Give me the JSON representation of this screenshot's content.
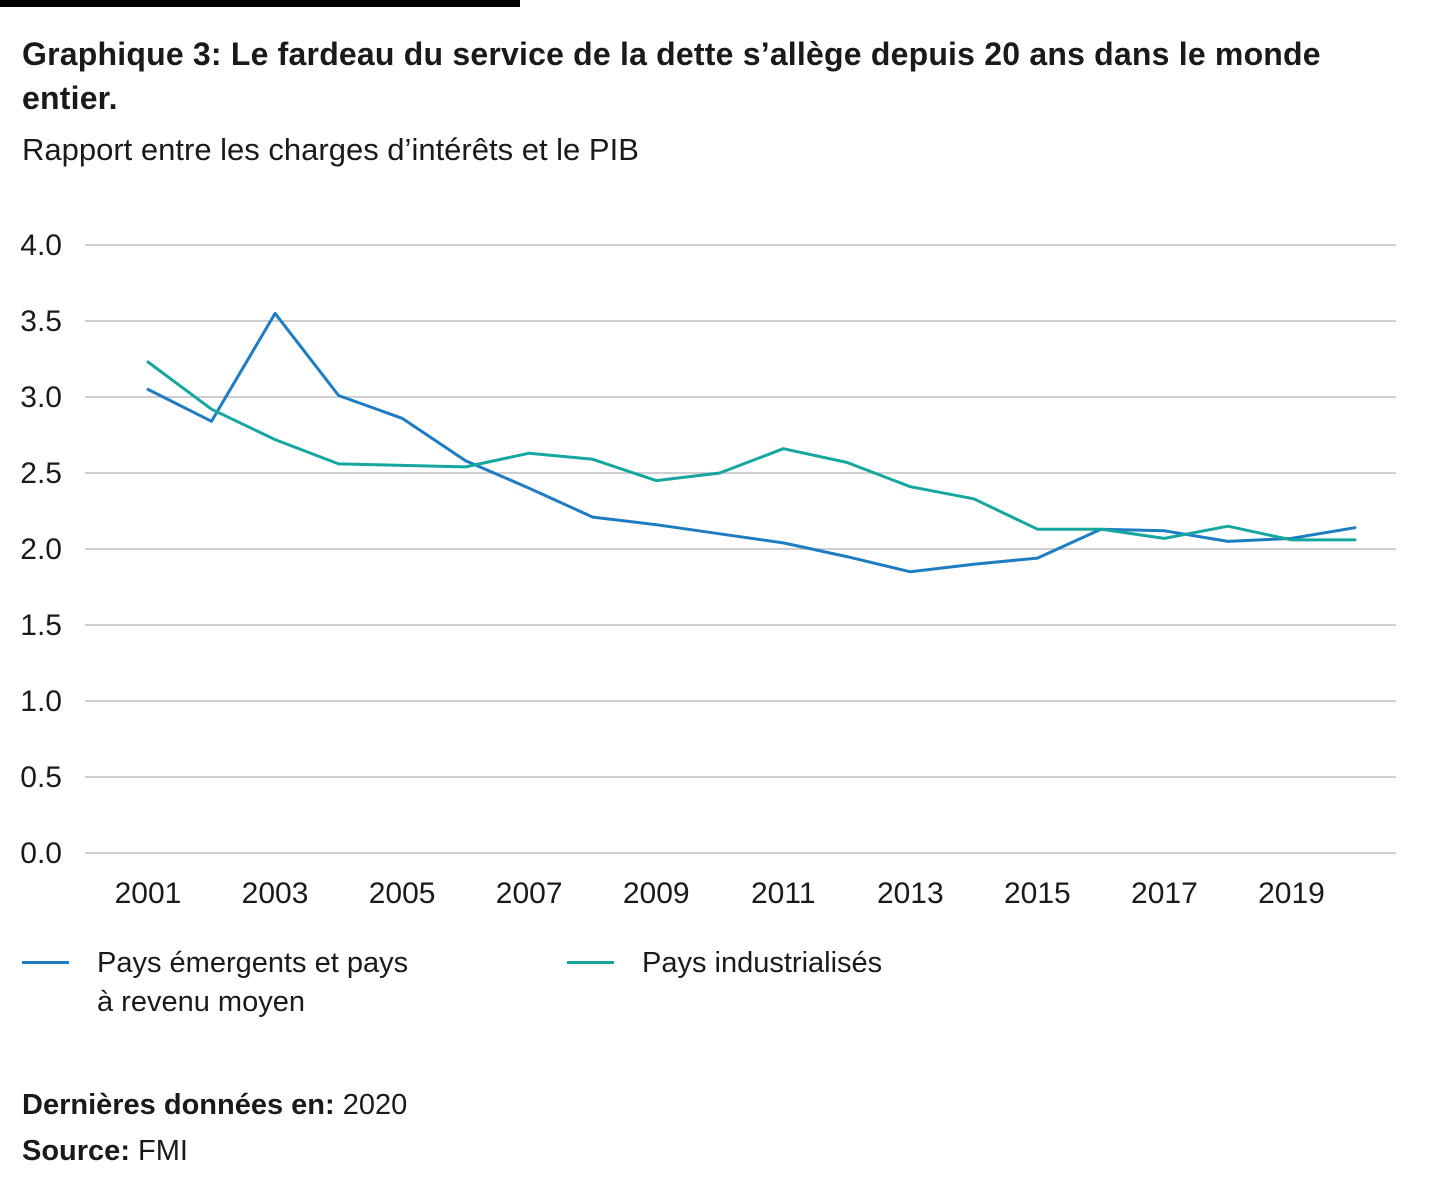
{
  "header": {
    "title": "Graphique 3: Le fardeau du service de la dette s’allège depuis 20 ans dans le monde entier.",
    "subtitle": "Rapport entre les charges d’intérêts et le PIB"
  },
  "chart_data": {
    "type": "line",
    "x": [
      2001,
      2002,
      2003,
      2004,
      2005,
      2006,
      2007,
      2008,
      2009,
      2010,
      2011,
      2012,
      2013,
      2014,
      2015,
      2016,
      2017,
      2018,
      2019,
      2020
    ],
    "series": [
      {
        "name": "Pays émergents et pays à revenu moyen",
        "color": "#1e7dc2",
        "values": [
          3.05,
          2.84,
          3.55,
          3.01,
          2.86,
          2.58,
          2.4,
          2.21,
          2.16,
          2.1,
          2.04,
          1.95,
          1.85,
          1.9,
          1.94,
          2.13,
          2.12,
          2.05,
          2.07,
          2.14
        ]
      },
      {
        "name": "Pays industrialisés",
        "color": "#15a79f",
        "values": [
          3.23,
          2.92,
          2.72,
          2.56,
          2.55,
          2.54,
          2.63,
          2.59,
          2.45,
          2.5,
          2.66,
          2.57,
          2.41,
          2.33,
          2.13,
          2.13,
          2.07,
          2.15,
          2.06,
          2.06
        ]
      }
    ],
    "ylim": [
      0.0,
      4.0
    ],
    "ytick_step": 0.5,
    "xticks": [
      2001,
      2003,
      2005,
      2007,
      2009,
      2011,
      2013,
      2015,
      2017,
      2019
    ],
    "grid": true,
    "grid_color": "#bdbdbd",
    "legend_position": "bottom",
    "title": "Graphique 3: Le fardeau du service de la dette s’allège depuis 20 ans dans le monde entier.",
    "subtitle": "Rapport entre les charges d’intérêts et le PIB"
  },
  "legend": {
    "items": [
      {
        "line1": "Pays émergents et pays",
        "line2": "à revenu moyen"
      },
      {
        "line1": "Pays industrialisés",
        "line2": ""
      }
    ]
  },
  "footer": {
    "last_data_label": "Dernières données en:",
    "last_data_value": " 2020",
    "source_label": "Source:",
    "source_value": " FMI"
  }
}
